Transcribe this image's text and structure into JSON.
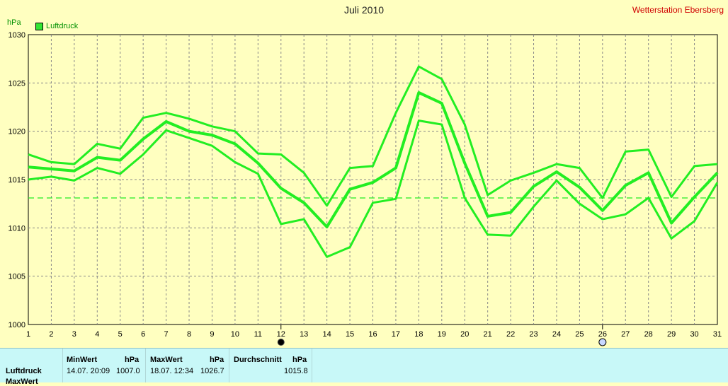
{
  "header": {
    "title": "Juli 2010",
    "station": "Wetterstation Ebersberg",
    "unit": "hPa",
    "legend_label": "Luftdruck"
  },
  "footer": {
    "row_label": "Luftdruck",
    "row_label_next": "MaxWert",
    "min_header": "MinWert",
    "min_unit": "hPa",
    "min_time": "14.07.  20:09",
    "min_value": "1007.0",
    "max_header": "MaxWert",
    "max_unit": "hPa",
    "max_time": "18.07.  12:34",
    "max_value": "1026.7",
    "avg_header": "Durchschnitt",
    "avg_unit": "hPa",
    "avg_value": "1015.8"
  },
  "colors": {
    "series": "#22ee22",
    "background": "#ffffc0",
    "footer_bg": "#c8f8f8",
    "station_text": "#d00000"
  },
  "chart_data": {
    "type": "line",
    "title": "Juli 2010",
    "ylabel": "hPa",
    "ylim": [
      1000,
      1030
    ],
    "yticks": [
      1000,
      1005,
      1010,
      1015,
      1020,
      1025,
      1030
    ],
    "x": [
      1,
      2,
      3,
      4,
      5,
      6,
      7,
      8,
      9,
      10,
      11,
      12,
      13,
      14,
      15,
      16,
      17,
      18,
      19,
      20,
      21,
      22,
      23,
      24,
      25,
      26,
      27,
      28,
      29,
      30,
      31
    ],
    "grid": true,
    "legend": "top-left",
    "series": [
      {
        "role": "max",
        "values": [
          1017.6,
          1016.8,
          1016.6,
          1018.7,
          1018.2,
          1021.4,
          1021.9,
          1021.3,
          1020.5,
          1020.0,
          1017.7,
          1017.6,
          1015.7,
          1012.3,
          1016.2,
          1016.4,
          1021.9,
          1026.7,
          1025.4,
          1020.7,
          1013.4,
          1014.9,
          1015.7,
          1016.6,
          1016.2,
          1013.1,
          1017.9,
          1018.1,
          1013.2,
          1016.4,
          1016.6
        ]
      },
      {
        "role": "avg",
        "values": [
          1016.3,
          1016.1,
          1015.9,
          1017.3,
          1017.0,
          1019.2,
          1021.0,
          1020.0,
          1019.6,
          1018.7,
          1016.7,
          1014.1,
          1012.6,
          1010.1,
          1014.0,
          1014.7,
          1016.2,
          1024.0,
          1022.9,
          1016.7,
          1011.2,
          1011.6,
          1014.3,
          1015.8,
          1014.2,
          1011.8,
          1014.4,
          1015.7,
          1010.5,
          1013.2,
          1015.7
        ]
      },
      {
        "role": "min",
        "values": [
          1015.0,
          1015.3,
          1014.9,
          1016.2,
          1015.6,
          1017.6,
          1020.1,
          1019.3,
          1018.5,
          1016.8,
          1015.6,
          1010.4,
          1010.9,
          1007.0,
          1008.0,
          1012.6,
          1013.0,
          1021.1,
          1020.7,
          1013.1,
          1009.3,
          1009.2,
          1012.2,
          1014.9,
          1012.5,
          1010.9,
          1011.4,
          1013.1,
          1008.9,
          1010.7,
          1014.7
        ]
      }
    ],
    "reference_line": {
      "label": "",
      "value": 1013.1
    },
    "markers": [
      {
        "x": 12,
        "symbol": "new-moon"
      },
      {
        "x": 26,
        "symbol": "full-moon"
      }
    ]
  }
}
